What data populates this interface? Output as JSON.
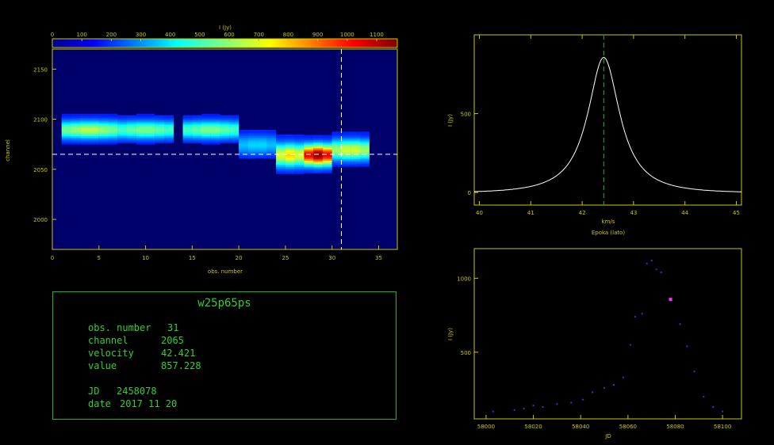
{
  "colorbar": {
    "title": "I (Jy)",
    "ticks": [
      "0",
      "100",
      "200",
      "300",
      "400",
      "500",
      "600",
      "700",
      "800",
      "900",
      "1000",
      "1100"
    ],
    "max": 1170
  },
  "heatmap": {
    "ylabel": "channel",
    "xlabel": "obs. number",
    "xticks": [
      "0",
      "5",
      "10",
      "15",
      "20",
      "25",
      "30",
      "35"
    ],
    "yticks": [
      "2000",
      "2050",
      "2100",
      "2150"
    ],
    "xlim": [
      0,
      37
    ],
    "ylim": [
      1970,
      2170
    ],
    "cursor_obs": 31,
    "cursor_channel": 2065
  },
  "info": {
    "title": "w25p65ps",
    "obs_label": "obs. number",
    "obs_value": "31",
    "channel_label": "channel",
    "channel_value": "2065",
    "velocity_label": "velocity",
    "velocity_value": "42.421",
    "value_label": "value",
    "value_value": "857.228",
    "jd_label": "JD",
    "jd_value": "2458078",
    "date_label": "date",
    "date_value": "2017 11 20"
  },
  "spectrum": {
    "ylabel": "I (Jy)",
    "xlabel": "Epoka (lato)",
    "unit": "km/s",
    "xticks": [
      "40",
      "41",
      "42",
      "43",
      "44",
      "45"
    ],
    "yticks": [
      "0",
      "500"
    ],
    "xlim": [
      39.9,
      45.1
    ],
    "ylim": [
      -80,
      1000
    ],
    "peak_velocity": 42.42,
    "peak_value": 857.2,
    "cursor_velocity": 42.421
  },
  "timeseries": {
    "ylabel": "I (Jy)",
    "xlabel": "JD",
    "xticks": [
      "58000",
      "58020",
      "58040",
      "58060",
      "58080",
      "58100"
    ],
    "yticks": [
      "500",
      "1000"
    ],
    "xlim": [
      57995,
      58108
    ],
    "ylim": [
      50,
      1200
    ],
    "highlight": {
      "jd": 58078,
      "value": 857
    }
  },
  "colors": {
    "axis": "#c8c800",
    "info_border": "#22b222",
    "info_text": "#2fd02f",
    "spectrum_line": "#ffffff",
    "spectrum_cursor": "#1c9c1c",
    "ts_points": "#3333dd",
    "ts_highlight": "#ff33ff"
  },
  "chart_data": [
    {
      "type": "heatmap",
      "xlabel": "obs. number",
      "ylabel": "channel",
      "colorbar_label": "I (Jy)",
      "xlim": [
        0,
        37
      ],
      "ylim": [
        1970,
        2170
      ],
      "vrange": [
        0,
        1170
      ],
      "blobs": [
        {
          "obs": [
            1,
            7
          ],
          "channel_center": 2090,
          "channel_halfwidth": 14,
          "peak": 600
        },
        {
          "obs": [
            7,
            13
          ],
          "channel_center": 2090,
          "channel_halfwidth": 14,
          "peak": 520
        },
        {
          "obs": [
            14,
            20
          ],
          "channel_center": 2090,
          "channel_halfwidth": 14,
          "peak": 520
        },
        {
          "obs": [
            20,
            24
          ],
          "channel_center": 2075,
          "channel_halfwidth": 16,
          "peak": 300
        },
        {
          "obs": [
            24,
            27
          ],
          "channel_center": 2065,
          "channel_halfwidth": 18,
          "peak": 720
        },
        {
          "obs": [
            27,
            30
          ],
          "channel_center": 2065,
          "channel_halfwidth": 16,
          "peak": 1170
        },
        {
          "obs": [
            30,
            34
          ],
          "channel_center": 2070,
          "channel_halfwidth": 16,
          "peak": 650
        }
      ]
    },
    {
      "type": "line",
      "xlabel": "Epoka (lato)",
      "ylabel": "I (Jy)",
      "xlim": [
        39.9,
        45.1
      ],
      "ylim": [
        -80,
        1000
      ],
      "x": [
        39.9,
        40.5,
        41.0,
        41.3,
        41.6,
        41.8,
        42.0,
        42.2,
        42.3,
        42.42,
        42.55,
        42.7,
        42.9,
        43.1,
        43.4,
        43.8,
        44.3,
        45.1
      ],
      "y": [
        0,
        1,
        5,
        20,
        80,
        200,
        430,
        700,
        820,
        857,
        800,
        620,
        360,
        180,
        70,
        20,
        5,
        0
      ]
    },
    {
      "type": "scatter",
      "xlabel": "JD",
      "ylabel": "I (Jy)",
      "xlim": [
        57995,
        58108
      ],
      "ylim": [
        50,
        1200
      ],
      "series": [
        {
          "x": [
            58003,
            58012,
            58016,
            58020,
            58024,
            58030,
            58036,
            58041,
            58045,
            58050,
            58054,
            58058,
            58061,
            58063,
            58066,
            58068,
            58070,
            58072,
            58074,
            58078,
            58082,
            58085,
            58088,
            58092,
            58096,
            58100
          ],
          "y": [
            100,
            110,
            120,
            140,
            130,
            150,
            160,
            180,
            230,
            260,
            280,
            330,
            550,
            740,
            760,
            1100,
            1120,
            1060,
            1040,
            857,
            690,
            540,
            370,
            200,
            130,
            100
          ]
        }
      ],
      "highlight": {
        "x": 58078,
        "y": 857
      }
    }
  ]
}
